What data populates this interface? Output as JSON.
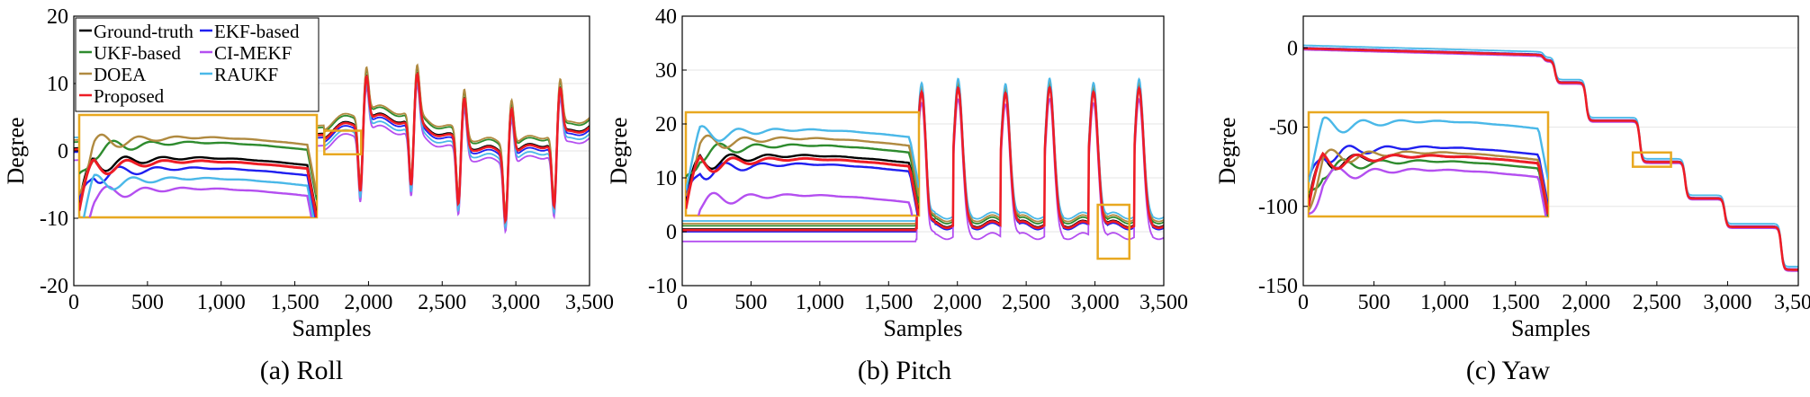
{
  "colors": {
    "ground_truth": "#000000",
    "ekf": "#1f1ff0",
    "ukf": "#2e8b2e",
    "ci_mekf": "#b44ff0",
    "doea": "#b08a40",
    "raukf": "#4ab8e8",
    "proposed": "#ee1c25",
    "zoom_box": "#e8a820",
    "grid": "#e6e6e6"
  },
  "chart_data": [
    {
      "type": "line",
      "caption": "(a) Roll",
      "xlabel": "Samples",
      "ylabel": "Degree",
      "xlim": [
        0,
        3500
      ],
      "ylim": [
        -20,
        20
      ],
      "xticks": [
        0,
        500,
        1000,
        1500,
        2000,
        2500,
        3000,
        3500
      ],
      "xtick_labels": [
        "0",
        "500",
        "1,000",
        "1,500",
        "2,000",
        "2,500",
        "3,000",
        "3,500"
      ],
      "yticks": [
        -20,
        -10,
        0,
        10,
        20
      ],
      "ytick_labels": [
        "-20",
        "-10",
        "0",
        "10",
        "20"
      ],
      "grid": true,
      "legend_position": "top-left",
      "legend": [
        "Ground-truth",
        "EKF-based",
        "UKF-based",
        "CI-MEKF",
        "DOEA",
        "RAUKF",
        "Proposed"
      ],
      "zoom_region": {
        "x": [
          1700,
          1950
        ],
        "y": [
          -0.5,
          3
        ]
      },
      "series": [
        {
          "name": "Ground-truth",
          "key": "ground_truth",
          "offset": 0.0
        },
        {
          "name": "EKF-based",
          "key": "ekf",
          "offset": -0.6
        },
        {
          "name": "UKF-based",
          "key": "ukf",
          "offset": 0.9
        },
        {
          "name": "CI-MEKF",
          "key": "ci_mekf",
          "offset": -1.8
        },
        {
          "name": "DOEA",
          "key": "doea",
          "offset": 1.2
        },
        {
          "name": "RAUKF",
          "key": "raukf",
          "offset": -1.2
        },
        {
          "name": "Proposed",
          "key": "proposed",
          "offset": -0.2
        }
      ]
    },
    {
      "type": "line",
      "caption": "(b) Pitch",
      "xlabel": "Samples",
      "ylabel": "Degree",
      "xlim": [
        0,
        3500
      ],
      "ylim": [
        -10,
        40
      ],
      "xticks": [
        0,
        500,
        1000,
        1500,
        2000,
        2500,
        3000,
        3500
      ],
      "xtick_labels": [
        "0",
        "500",
        "1,000",
        "1,500",
        "2,000",
        "2,500",
        "3,000",
        "3,500"
      ],
      "yticks": [
        -10,
        0,
        10,
        20,
        30,
        40
      ],
      "ytick_labels": [
        "-10",
        "0",
        "10",
        "20",
        "30",
        "40"
      ],
      "grid": true,
      "zoom_region": {
        "x": [
          3020,
          3250
        ],
        "y": [
          -5,
          5
        ]
      },
      "series": [
        {
          "name": "Ground-truth",
          "key": "ground_truth",
          "offset": 0.0
        },
        {
          "name": "EKF-based",
          "key": "ekf",
          "offset": -0.5
        },
        {
          "name": "UKF-based",
          "key": "ukf",
          "offset": 0.6
        },
        {
          "name": "CI-MEKF",
          "key": "ci_mekf",
          "offset": -2.3
        },
        {
          "name": "DOEA",
          "key": "doea",
          "offset": 1.0
        },
        {
          "name": "RAUKF",
          "key": "raukf",
          "offset": 1.5
        },
        {
          "name": "Proposed",
          "key": "proposed",
          "offset": -0.2
        }
      ]
    },
    {
      "type": "line",
      "caption": "(c) Yaw",
      "xlabel": "Samples",
      "ylabel": "Degree",
      "xlim": [
        0,
        3500
      ],
      "ylim": [
        -150,
        20
      ],
      "xticks": [
        0,
        500,
        1000,
        1500,
        2000,
        2500,
        3000,
        3500
      ],
      "xtick_labels": [
        "0",
        "500",
        "1,000",
        "1,500",
        "2,000",
        "2,500",
        "3,000",
        "3,500"
      ],
      "yticks": [
        -150,
        -100,
        -50,
        0
      ],
      "ytick_labels": [
        "-150",
        "-100",
        "-50",
        "0"
      ],
      "grid": true,
      "zoom_region": {
        "x": [
          2330,
          2600
        ],
        "y": [
          -75,
          -66
        ]
      },
      "series": [
        {
          "name": "Ground-truth",
          "key": "ground_truth",
          "offset": 0.0
        },
        {
          "name": "EKF-based",
          "key": "ekf",
          "offset": 0.5
        },
        {
          "name": "UKF-based",
          "key": "ukf",
          "offset": -0.3
        },
        {
          "name": "CI-MEKF",
          "key": "ci_mekf",
          "offset": -0.8
        },
        {
          "name": "DOEA",
          "key": "doea",
          "offset": 0.2
        },
        {
          "name": "RAUKF",
          "key": "raukf",
          "offset": 2.0
        },
        {
          "name": "Proposed",
          "key": "proposed",
          "offset": 0.0
        }
      ]
    }
  ]
}
